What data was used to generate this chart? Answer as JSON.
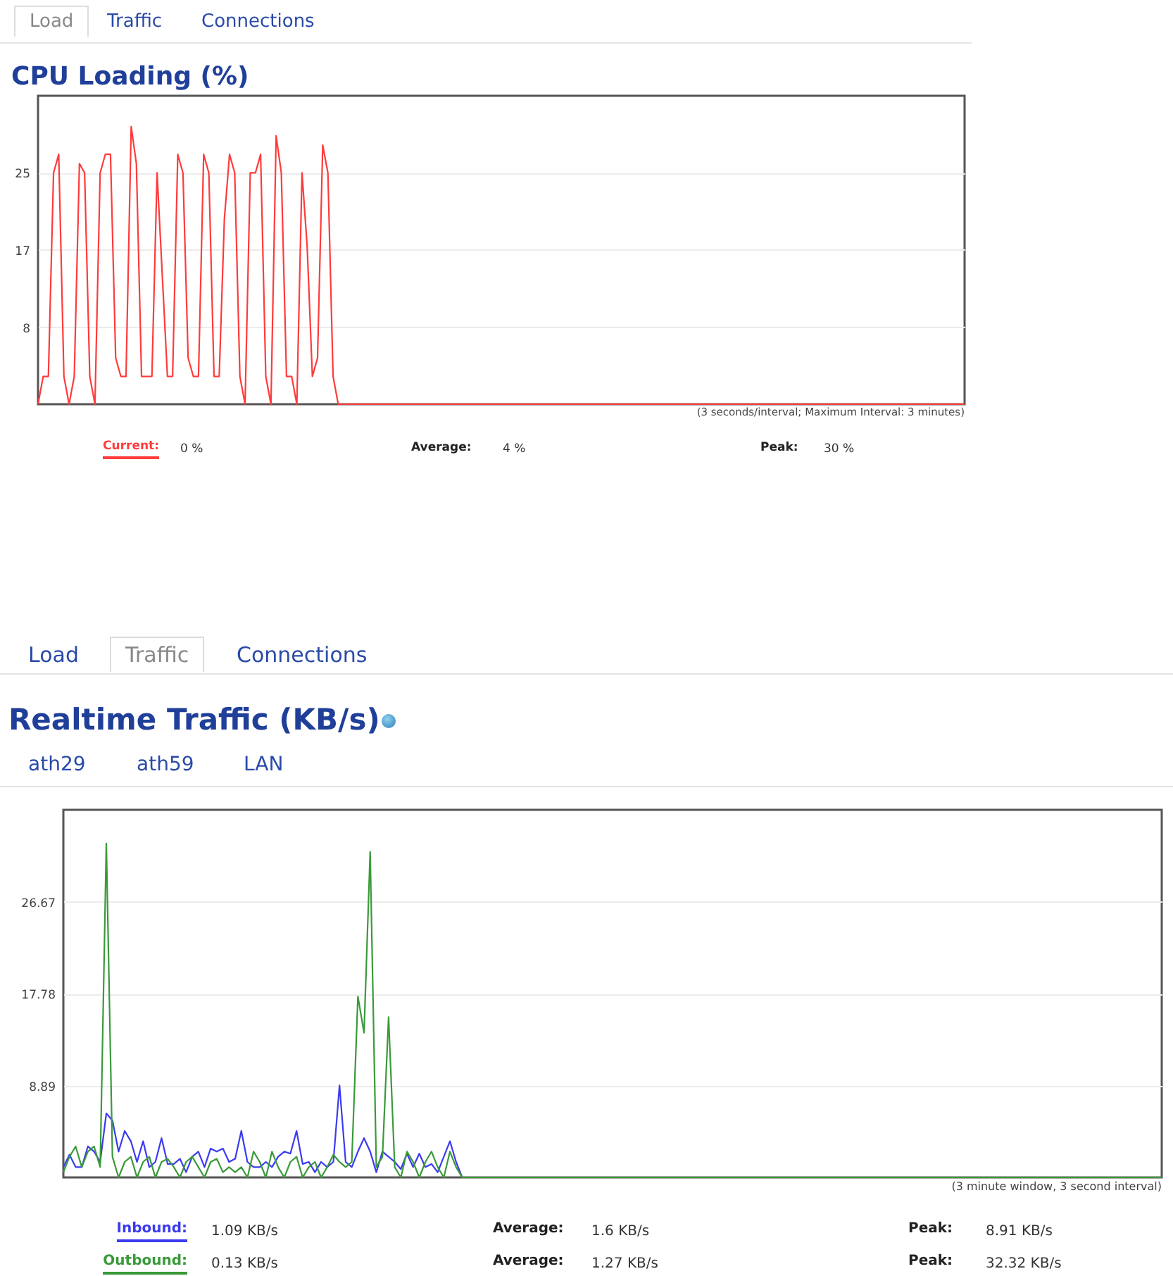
{
  "chart_data": [
    {
      "type": "line",
      "title": "CPU Loading (%)",
      "categories": [
        null,
        null,
        null,
        null,
        null,
        null,
        null,
        null,
        null,
        null,
        null,
        null,
        null,
        null,
        null,
        null,
        null,
        null,
        null,
        null,
        null,
        null,
        null,
        null,
        null,
        null,
        null,
        null,
        null,
        null,
        null,
        null,
        null,
        null,
        null,
        null,
        null,
        null,
        null,
        null,
        null,
        null,
        null,
        null,
        null,
        null,
        null,
        null,
        null,
        null,
        null,
        null,
        null,
        null,
        null,
        null,
        null,
        null,
        null,
        null,
        null,
        null,
        null,
        null,
        null,
        null,
        null,
        null,
        null,
        null,
        null,
        null,
        null,
        null,
        null,
        null,
        null,
        null,
        null,
        null,
        null,
        null,
        null,
        null,
        null,
        null,
        null,
        null,
        null,
        null,
        null,
        null,
        null,
        null,
        null,
        null,
        null,
        null,
        null,
        null,
        null,
        null,
        null,
        null,
        null,
        null,
        null,
        null,
        null,
        null,
        null,
        null,
        null,
        null,
        null,
        null,
        null,
        null,
        null,
        null,
        null,
        null,
        null,
        null,
        null,
        null,
        null,
        null,
        null,
        null,
        null,
        null,
        null,
        null,
        null,
        null,
        null,
        null,
        null,
        null,
        null,
        null,
        null,
        null,
        null,
        null,
        null,
        null,
        null,
        null,
        null,
        null,
        null,
        null,
        null,
        null,
        null,
        null,
        null,
        null,
        null,
        null,
        null,
        null,
        null,
        null,
        null,
        null,
        null,
        null,
        null,
        null,
        null,
        null,
        null,
        null,
        null,
        null,
        null,
        null
      ],
      "series": [
        {
          "name": "Current:",
          "color": "#ff3b3b",
          "values": [
            0,
            3,
            3,
            25,
            27,
            3,
            0,
            3,
            26,
            25,
            3,
            0,
            25,
            27,
            27,
            5,
            3,
            3,
            30,
            26,
            3,
            3,
            3,
            25,
            14,
            3,
            3,
            27,
            25,
            5,
            3,
            3,
            27,
            25,
            3,
            3,
            20,
            27,
            25,
            3,
            0,
            25,
            25,
            27,
            3,
            0,
            29,
            25,
            3,
            3,
            0,
            25,
            17,
            3,
            5,
            28,
            25,
            3,
            0,
            0,
            0,
            0,
            0,
            0,
            0,
            0,
            0,
            0,
            0,
            0,
            0,
            0,
            0,
            0,
            0,
            0,
            0,
            0,
            0,
            0,
            0,
            0,
            0,
            0,
            0,
            0,
            0,
            0,
            0,
            0,
            0,
            0,
            0,
            0,
            0,
            0,
            0,
            0,
            0,
            0,
            0,
            0,
            0,
            0,
            0,
            0,
            0,
            0,
            0,
            0,
            0,
            0,
            0,
            0,
            0,
            0,
            0,
            0,
            0,
            0,
            0,
            0,
            0,
            0,
            0,
            0,
            0,
            0,
            0,
            0,
            0,
            0,
            0,
            0,
            0,
            0,
            0,
            0,
            0,
            0,
            0,
            0,
            0,
            0,
            0,
            0,
            0,
            0,
            0,
            0,
            0,
            0,
            0,
            0,
            0,
            0,
            0,
            0,
            0,
            0,
            0,
            0,
            0,
            0,
            0,
            0,
            0,
            0,
            0,
            0,
            0,
            0,
            0,
            0,
            0,
            0,
            0,
            0,
            0,
            0
          ]
        }
      ],
      "ylim": [
        0,
        33.33
      ],
      "yticks": [
        {
          "value": 8.33,
          "label": "8"
        },
        {
          "value": 16.67,
          "label": "17"
        },
        25
      ],
      "grid": "y",
      "legend": "bottom",
      "tick_labels": "y",
      "annotations": [
        "Load",
        "Traffic",
        "Connections",
        "(3 seconds/interval; Maximum Interval: 3 minutes)",
        "0 %",
        "Average:",
        "4 %",
        "Peak:",
        "30 %"
      ]
    },
    {
      "type": "line",
      "title": "Realtime Traffic (KB/s)",
      "categories": [
        null,
        null,
        null,
        null,
        null,
        null,
        null,
        null,
        null,
        null,
        null,
        null,
        null,
        null,
        null,
        null,
        null,
        null,
        null,
        null,
        null,
        null,
        null,
        null,
        null,
        null,
        null,
        null,
        null,
        null,
        null,
        null,
        null,
        null,
        null,
        null,
        null,
        null,
        null,
        null,
        null,
        null,
        null,
        null,
        null,
        null,
        null,
        null,
        null,
        null,
        null,
        null,
        null,
        null,
        null,
        null,
        null,
        null,
        null,
        null,
        null,
        null,
        null,
        null,
        null,
        null,
        null,
        null,
        null,
        null,
        null,
        null,
        null,
        null,
        null,
        null,
        null,
        null,
        null,
        null,
        null,
        null,
        null,
        null,
        null,
        null,
        null,
        null,
        null,
        null,
        null,
        null,
        null,
        null,
        null,
        null,
        null,
        null,
        null,
        null,
        null,
        null,
        null,
        null,
        null,
        null,
        null,
        null,
        null,
        null,
        null,
        null,
        null,
        null,
        null,
        null,
        null,
        null,
        null,
        null,
        null,
        null,
        null,
        null,
        null,
        null,
        null,
        null,
        null,
        null,
        null,
        null,
        null,
        null,
        null,
        null,
        null,
        null,
        null,
        null,
        null,
        null,
        null,
        null,
        null,
        null,
        null,
        null,
        null,
        null,
        null,
        null,
        null,
        null,
        null,
        null,
        null,
        null,
        null,
        null,
        null,
        null,
        null,
        null,
        null,
        null,
        null,
        null,
        null,
        null,
        null,
        null,
        null,
        null,
        null,
        null,
        null,
        null,
        null,
        null
      ],
      "series": [
        {
          "name": "Inbound:",
          "color": "#3b3bf0",
          "values": [
            1,
            2.2,
            1,
            1,
            3,
            2.5,
            1.5,
            6.2,
            5.5,
            2.5,
            4.5,
            3.5,
            1.5,
            3.5,
            1,
            1.5,
            3.8,
            1.3,
            1.3,
            1.8,
            0.5,
            2,
            2.5,
            1,
            2.8,
            2.5,
            2.8,
            1.5,
            1.8,
            4.5,
            1.5,
            1,
            1,
            1.5,
            1,
            2,
            2.5,
            2.3,
            4.5,
            1.3,
            1.5,
            0.5,
            1.5,
            1,
            1.5,
            8.9,
            1.5,
            1,
            2.5,
            3.8,
            2.5,
            0.5,
            2.5,
            2,
            1.5,
            0.8,
            2.3,
            1,
            2.3,
            1,
            1.3,
            0.5,
            2,
            3.5,
            1.5,
            0,
            null,
            null,
            null,
            null,
            null,
            null,
            null,
            null,
            null,
            null,
            null,
            null,
            null,
            null,
            null,
            null,
            null,
            null,
            null,
            null,
            null,
            null,
            null,
            null,
            null,
            null,
            null,
            null,
            null,
            null,
            null,
            null,
            null,
            null,
            null,
            null,
            null,
            null,
            null,
            null,
            null,
            null,
            null,
            null,
            null,
            null,
            null,
            null,
            null,
            null,
            null,
            null,
            null,
            null,
            null,
            null,
            null,
            null,
            null,
            null,
            null,
            null,
            null,
            null,
            null,
            null,
            null,
            null,
            null,
            null,
            null,
            null,
            null,
            null,
            null,
            null,
            null,
            null,
            null,
            null,
            null,
            null,
            null,
            null,
            null,
            null,
            null,
            null,
            null,
            null,
            null,
            null,
            null,
            null,
            null,
            null,
            null,
            null,
            null,
            null,
            null,
            null,
            null,
            null,
            null,
            null,
            null,
            null,
            null,
            null,
            null,
            null,
            null,
            null
          ]
        },
        {
          "name": "Outbound:",
          "color": "#3a9a3a",
          "values": [
            0.5,
            2,
            3,
            1,
            2.5,
            3,
            1,
            32.3,
            2,
            0,
            1.5,
            2,
            0,
            1.5,
            2,
            0,
            1.5,
            1.8,
            1,
            0,
            1.5,
            2,
            1,
            0,
            1.5,
            1.8,
            0.5,
            1,
            0.5,
            1,
            0,
            2.5,
            1.5,
            0,
            2.5,
            1,
            0,
            1.5,
            2,
            0,
            1,
            1.5,
            0,
            1,
            2.2,
            1.5,
            1,
            1.5,
            17.5,
            14,
            31.5,
            1,
            2,
            15.5,
            1,
            0,
            2.5,
            1.5,
            0,
            1.5,
            2.5,
            1,
            0,
            2.5,
            1,
            0,
            0,
            0,
            0,
            0,
            0,
            0,
            0,
            0,
            0,
            0,
            0,
            0,
            0,
            0,
            0,
            0,
            0,
            0,
            0,
            0,
            0,
            0,
            0,
            0,
            0,
            0,
            0,
            0,
            0,
            0,
            0,
            0,
            0,
            0,
            0,
            0,
            0,
            0,
            0,
            0,
            0,
            0,
            0,
            0,
            0,
            0,
            0,
            0,
            0,
            0,
            0,
            0,
            0,
            0,
            0,
            0,
            0,
            0,
            0,
            0,
            0,
            0,
            0,
            0,
            0,
            0,
            0,
            0,
            0,
            0,
            0,
            0,
            0,
            0,
            0,
            0,
            0,
            0,
            0,
            0,
            0,
            0,
            0,
            0,
            0,
            0,
            0,
            0,
            0,
            0,
            0,
            0,
            0,
            0,
            0,
            0,
            0,
            0,
            0,
            0,
            0,
            0,
            0,
            0,
            0,
            0,
            0,
            0,
            0,
            0,
            0,
            0,
            0,
            0
          ]
        }
      ],
      "ylim": [
        0,
        35.56
      ],
      "yticks": [
        8.89,
        17.78,
        26.67
      ],
      "grid": "y",
      "legend": "bottom",
      "tick_labels": "y",
      "annotations": [
        "Load",
        "Traffic",
        "Connections",
        "ath29",
        "ath59",
        "LAN",
        "(3 minute window, 3 second interval)",
        "1.09 KB/s",
        "Average:",
        "1.6 KB/s",
        "Peak:",
        "8.91 KB/s",
        "0.13 KB/s",
        "Average:",
        "1.27 KB/s",
        "Peak:",
        "32.32 KB/s"
      ]
    }
  ]
}
